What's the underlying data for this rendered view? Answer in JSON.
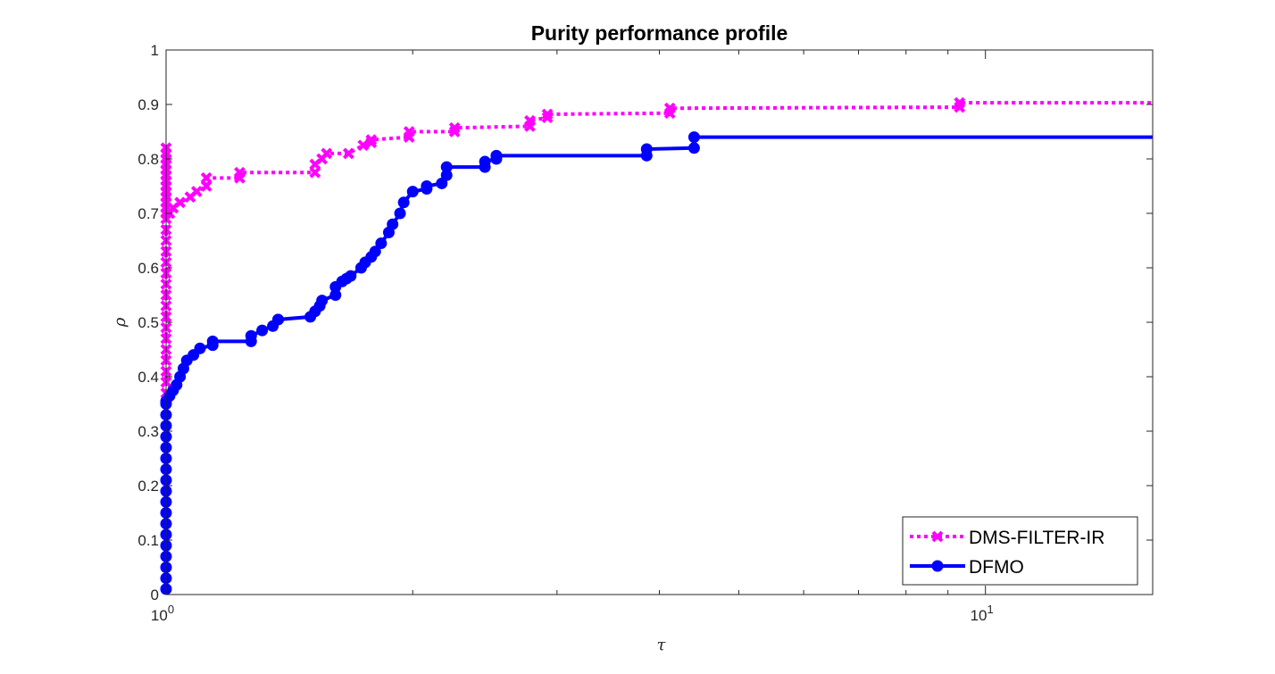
{
  "chart_data": {
    "type": "line",
    "title": "Purity performance profile",
    "xlabel": "τ",
    "ylabel": "ρ",
    "xscale": "log",
    "xlim": [
      1,
      16
    ],
    "ylim": [
      0,
      1
    ],
    "xticks": [
      {
        "value": 1,
        "base": "10",
        "exp": "0"
      },
      {
        "value": 10,
        "base": "10",
        "exp": "1"
      }
    ],
    "yticks": [
      "0",
      "0.1",
      "0.2",
      "0.3",
      "0.4",
      "0.5",
      "0.6",
      "0.7",
      "0.8",
      "0.9",
      "1"
    ],
    "grid": false,
    "legend_position": "bottom-right",
    "series": [
      {
        "name": "DMS-FILTER-IR",
        "color": "#ff00ff",
        "linestyle": "dotted",
        "marker": "x",
        "x": [
          1.0,
          1.0,
          1.0,
          1.0,
          1.0,
          1.0,
          1.0,
          1.0,
          1.0,
          1.0,
          1.0,
          1.0,
          1.0,
          1.0,
          1.0,
          1.0,
          1.0,
          1.0,
          1.0,
          1.0,
          1.0,
          1.0,
          1.0,
          1.0,
          1.0,
          1.0,
          1.0,
          1.0,
          1.0,
          1.0,
          1.01,
          1.02,
          1.04,
          1.07,
          1.09,
          1.12,
          1.12,
          1.23,
          1.23,
          1.52,
          1.52,
          1.55,
          1.57,
          1.67,
          1.74,
          1.78,
          1.78,
          1.98,
          1.98,
          2.25,
          2.25,
          2.78,
          2.78,
          2.92,
          2.92,
          4.12,
          4.12,
          9.3,
          9.3,
          16.0
        ],
        "y": [
          0.37,
          0.39,
          0.41,
          0.43,
          0.45,
          0.47,
          0.49,
          0.51,
          0.53,
          0.55,
          0.57,
          0.59,
          0.61,
          0.63,
          0.65,
          0.67,
          0.69,
          0.7,
          0.71,
          0.72,
          0.73,
          0.74,
          0.75,
          0.76,
          0.77,
          0.78,
          0.79,
          0.8,
          0.81,
          0.82,
          0.7,
          0.71,
          0.72,
          0.73,
          0.74,
          0.75,
          0.765,
          0.765,
          0.775,
          0.775,
          0.79,
          0.8,
          0.81,
          0.81,
          0.825,
          0.83,
          0.835,
          0.84,
          0.85,
          0.85,
          0.857,
          0.86,
          0.87,
          0.876,
          0.882,
          0.884,
          0.893,
          0.895,
          0.903,
          0.903
        ]
      },
      {
        "name": "DFMO",
        "color": "#0000ff",
        "linestyle": "solid",
        "marker": "o",
        "x": [
          1.0,
          1.0,
          1.0,
          1.0,
          1.0,
          1.0,
          1.0,
          1.0,
          1.0,
          1.0,
          1.0,
          1.0,
          1.0,
          1.0,
          1.0,
          1.0,
          1.0,
          1.0,
          1.0,
          1.01,
          1.02,
          1.03,
          1.04,
          1.05,
          1.06,
          1.08,
          1.1,
          1.14,
          1.14,
          1.27,
          1.27,
          1.31,
          1.35,
          1.37,
          1.37,
          1.5,
          1.52,
          1.54,
          1.55,
          1.61,
          1.61,
          1.64,
          1.66,
          1.68,
          1.73,
          1.75,
          1.78,
          1.8,
          1.83,
          1.87,
          1.89,
          1.93,
          1.95,
          2.0,
          2.08,
          2.08,
          2.17,
          2.2,
          2.2,
          2.45,
          2.45,
          2.53,
          2.53,
          3.86,
          3.86,
          4.41,
          4.41,
          16.0
        ],
        "y": [
          0.01,
          0.03,
          0.05,
          0.07,
          0.09,
          0.11,
          0.13,
          0.15,
          0.17,
          0.19,
          0.21,
          0.23,
          0.25,
          0.27,
          0.29,
          0.31,
          0.33,
          0.35,
          0.355,
          0.365,
          0.375,
          0.385,
          0.4,
          0.415,
          0.43,
          0.44,
          0.452,
          0.458,
          0.465,
          0.465,
          0.475,
          0.485,
          0.493,
          0.505,
          0.505,
          0.51,
          0.52,
          0.53,
          0.54,
          0.55,
          0.565,
          0.575,
          0.58,
          0.585,
          0.6,
          0.61,
          0.62,
          0.63,
          0.645,
          0.665,
          0.68,
          0.7,
          0.72,
          0.74,
          0.745,
          0.75,
          0.755,
          0.77,
          0.785,
          0.785,
          0.795,
          0.8,
          0.806,
          0.806,
          0.818,
          0.82,
          0.84,
          0.84
        ]
      }
    ]
  }
}
